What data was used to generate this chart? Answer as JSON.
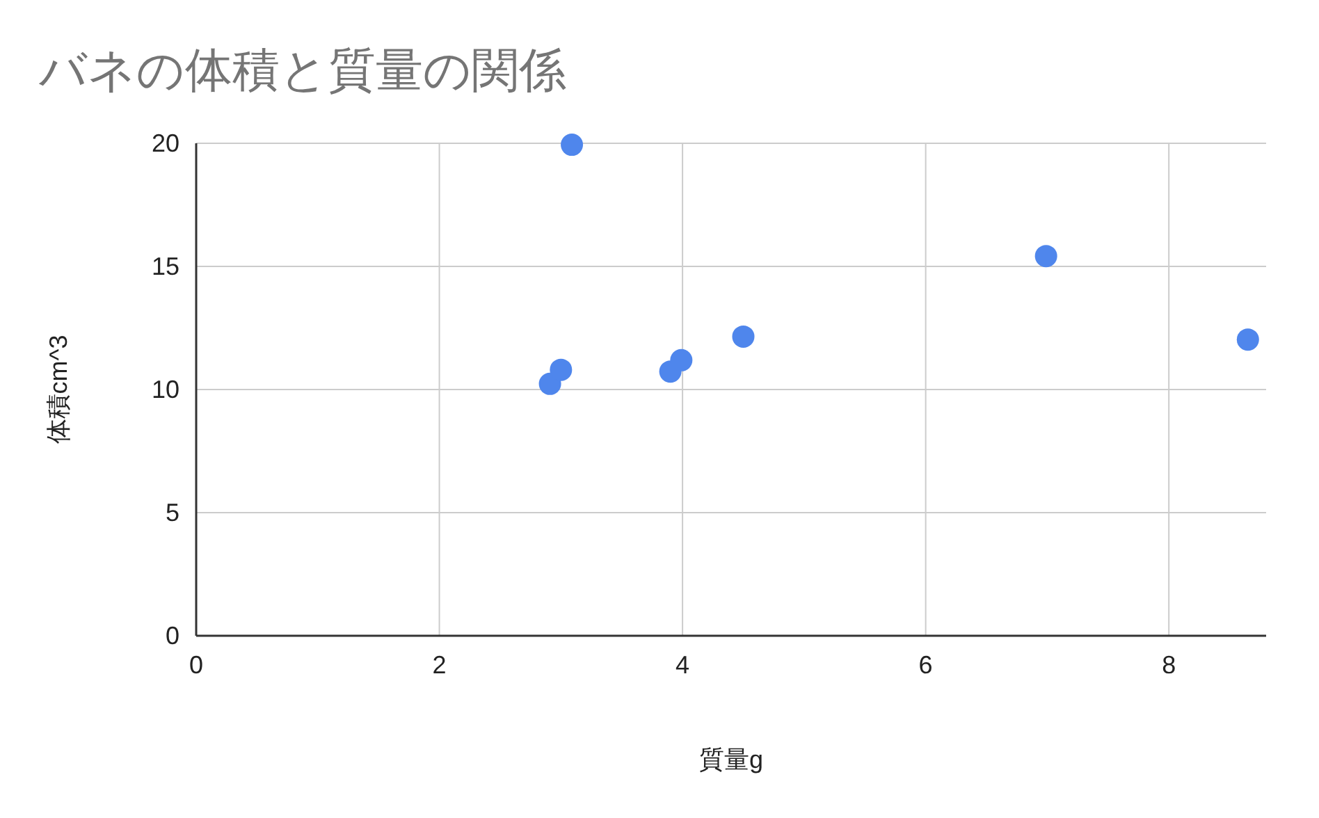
{
  "chart_data": {
    "type": "scatter",
    "title": "バネの体積と質量の関係",
    "xlabel": "質量g",
    "ylabel": "体積cm^3",
    "x": [
      2.91,
      3.0,
      3.09,
      3.9,
      3.99,
      4.5,
      6.99,
      8.65
    ],
    "series": [
      {
        "color": "#4f86ec",
        "values": [
          10.23,
          10.8,
          19.94,
          10.73,
          11.19,
          12.15,
          15.42,
          12.03
        ]
      }
    ],
    "xlim": [
      0,
      8.8
    ],
    "xticks": [
      0,
      2,
      4,
      6,
      8
    ],
    "ylim": [
      0,
      20
    ],
    "yticks": [
      0,
      5,
      10,
      15,
      20
    ],
    "grid": true,
    "marker": "circle"
  }
}
